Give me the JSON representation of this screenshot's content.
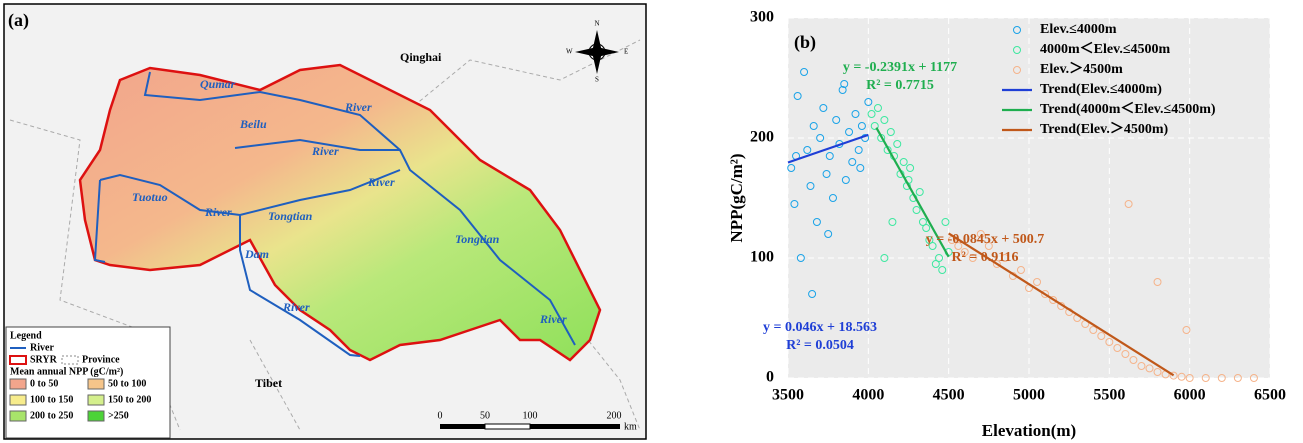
{
  "map": {
    "panel": "(a)",
    "regions": [
      "Qinghai",
      "Tibet"
    ],
    "rivers": [
      "Qumar",
      "River",
      "Beilu",
      "River",
      "Tuotuo",
      "River",
      "Tongtian",
      "River",
      "Dam",
      "River",
      "Tongtian",
      "River"
    ],
    "compass": [
      "N",
      "E",
      "S",
      "W"
    ],
    "legend": {
      "title": "Legend",
      "river": "River",
      "sryr": "SRYR",
      "province": "Province",
      "npp_title": "Mean annual NPP (gC/m²)",
      "classes": [
        {
          "label": "0 to 50",
          "color": "#f2a58c"
        },
        {
          "label": "50 to 100",
          "color": "#f6c58a"
        },
        {
          "label": "100 to 150",
          "color": "#f7ec8c"
        },
        {
          "label": "150 to 200",
          "color": "#d4ef8c"
        },
        {
          "label": "200 to 250",
          "color": "#a8e46a"
        },
        {
          "label": ">250",
          "color": "#4cd337"
        }
      ]
    },
    "scale": [
      "0",
      "50",
      "100",
      "200",
      "km"
    ]
  },
  "chart_data": {
    "type": "scatter",
    "panel": "(b)",
    "x_label": "Elevation(m)",
    "y_label": "NPP(gC/m²)",
    "xlim": [
      3500,
      6500
    ],
    "xticks": [
      3500,
      4000,
      4500,
      5000,
      5500,
      6000,
      6500
    ],
    "ylim": [
      0,
      300
    ],
    "yticks": [
      0,
      100,
      200,
      300
    ],
    "grid": true,
    "legend": "upper right",
    "series": [
      {
        "name": "Elev.≤4000m",
        "color": "#1aa3e8",
        "x": [
          3520,
          3540,
          3560,
          3580,
          3600,
          3620,
          3640,
          3660,
          3680,
          3700,
          3720,
          3740,
          3760,
          3780,
          3800,
          3820,
          3840,
          3860,
          3880,
          3900,
          3920,
          3940,
          3960,
          3980,
          4000,
          3550,
          3650,
          3750,
          3850,
          3950
        ],
        "values": [
          175,
          145,
          235,
          100,
          255,
          190,
          160,
          210,
          130,
          200,
          225,
          170,
          185,
          150,
          215,
          195,
          240,
          165,
          205,
          180,
          220,
          190,
          210,
          200,
          230,
          185,
          70,
          120,
          245,
          175
        ]
      },
      {
        "name": "4000m＜Elev.≤4500m",
        "color": "#3de8a0",
        "x": [
          4020,
          4040,
          4060,
          4080,
          4100,
          4120,
          4140,
          4160,
          4180,
          4200,
          4220,
          4240,
          4260,
          4280,
          4300,
          4320,
          4340,
          4360,
          4380,
          4400,
          4420,
          4440,
          4460,
          4480,
          4500,
          4100,
          4150,
          4250
        ],
        "values": [
          220,
          210,
          225,
          200,
          215,
          190,
          205,
          185,
          195,
          170,
          180,
          160,
          175,
          150,
          140,
          155,
          130,
          125,
          115,
          110,
          95,
          100,
          90,
          130,
          105,
          100,
          130,
          165
        ]
      },
      {
        "name": "Elev.＞4500m",
        "color": "#f5b38a",
        "x": [
          4520,
          4560,
          4600,
          4650,
          4700,
          4750,
          4800,
          4850,
          4900,
          4950,
          5000,
          5050,
          5100,
          5150,
          5200,
          5250,
          5300,
          5350,
          5400,
          5450,
          5500,
          5550,
          5600,
          5650,
          5700,
          5750,
          5800,
          5850,
          5900,
          5950,
          6000,
          6100,
          6200,
          6300,
          6400,
          5620,
          5800,
          5980
        ],
        "values": [
          115,
          110,
          105,
          100,
          120,
          110,
          95,
          100,
          85,
          90,
          75,
          80,
          70,
          65,
          60,
          55,
          50,
          45,
          40,
          35,
          30,
          25,
          20,
          15,
          10,
          8,
          5,
          3,
          2,
          1,
          0,
          0,
          0,
          0,
          0,
          145,
          80,
          40
        ]
      },
      {
        "name": "Trend(Elev.≤4000m)",
        "color": "#1f3fd6",
        "line": true,
        "x": [
          3500,
          4000
        ],
        "values": [
          179.6,
          202.6
        ]
      },
      {
        "name": "Trend(4000m＜Elev.≤4500m)",
        "color": "#1fae4f",
        "line": true,
        "x": [
          4050,
          4500
        ],
        "values": [
          208.6,
          101
        ]
      },
      {
        "name": "Trend(Elev.＞4500m)",
        "color": "#c0581a",
        "line": true,
        "x": [
          4500,
          5900
        ],
        "values": [
          120.5,
          2.2
        ]
      }
    ],
    "annotations": [
      {
        "lines": [
          "y = -0.2391x + 1177",
          "R² = 0.7715"
        ],
        "color": "#1fae4f"
      },
      {
        "lines": [
          "y = -0.0845x + 500.7",
          "R² = 0.9116"
        ],
        "color": "#c0581a"
      },
      {
        "lines": [
          "y = 0.046x + 18.563",
          "R² = 0.0504"
        ],
        "color": "#1f3fd6"
      }
    ]
  }
}
